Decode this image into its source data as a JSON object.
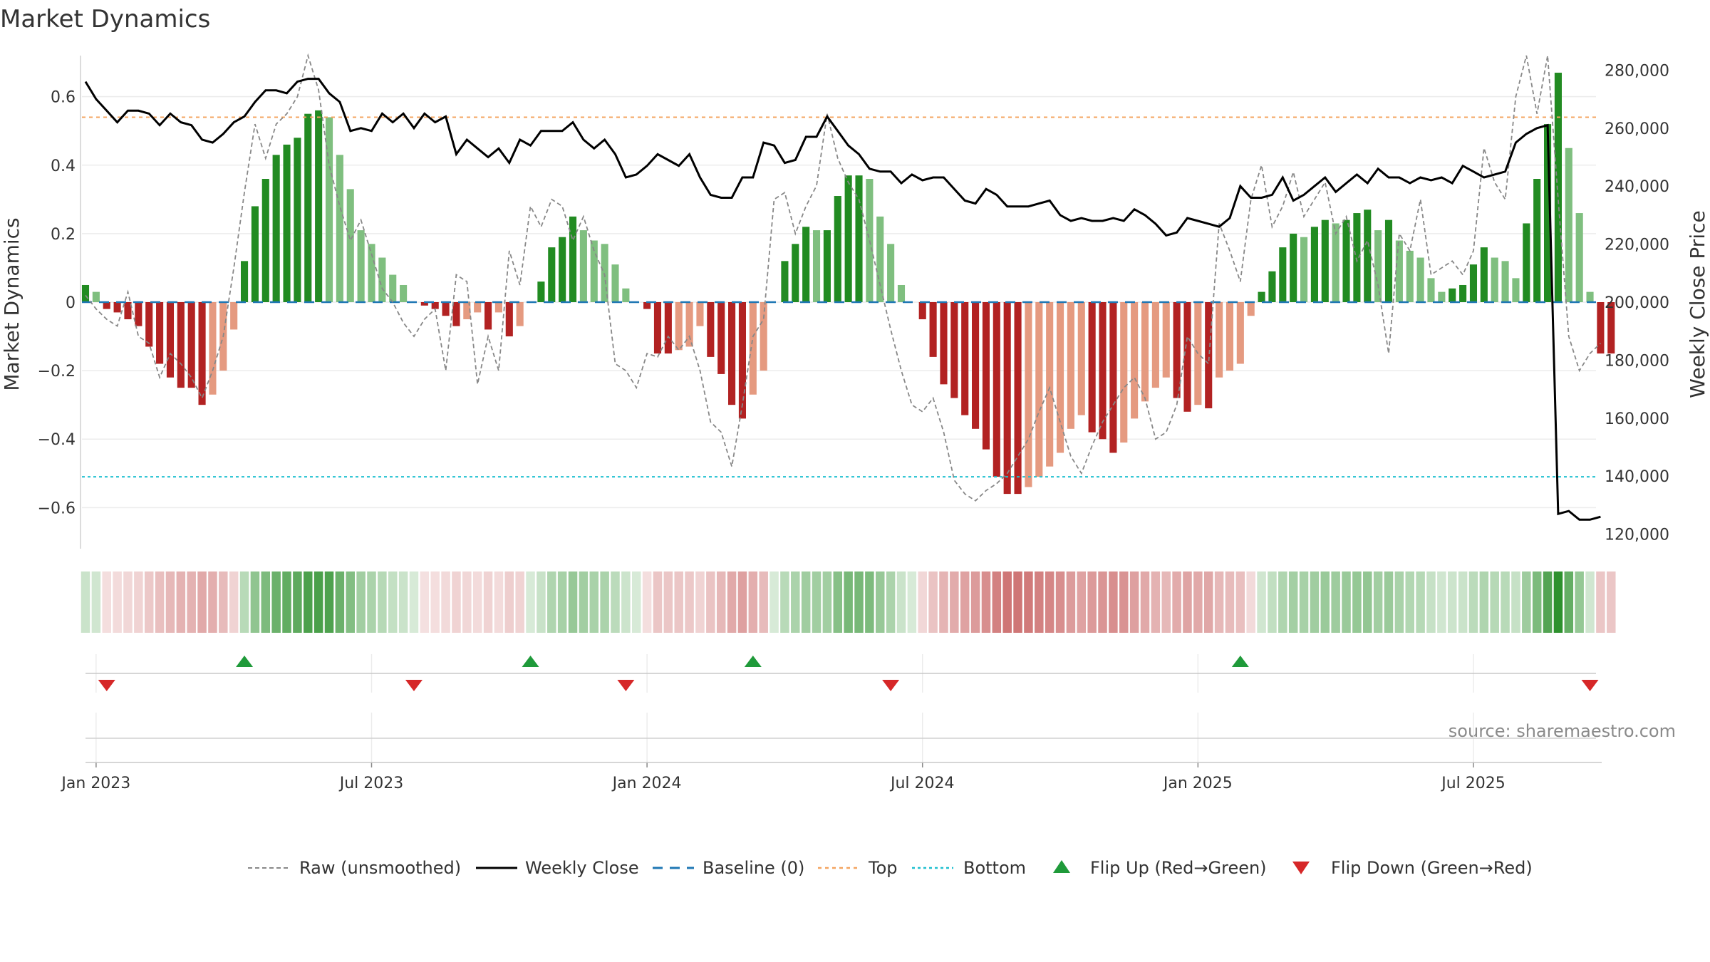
{
  "chart_data": {
    "type": "bar",
    "title": "Market Dynamics",
    "ylabel_left": "Market Dynamics",
    "ylabel_right": "Weekly Close Price",
    "source": "source: sharemaestro.com",
    "left_ylim": [
      -0.72,
      0.72
    ],
    "right_ylim": [
      115000,
      285000
    ],
    "left_ticks": [
      {
        "v": 0.6,
        "label": "0.6"
      },
      {
        "v": 0.4,
        "label": "0.4"
      },
      {
        "v": 0.2,
        "label": "0.2"
      },
      {
        "v": 0,
        "label": "0"
      },
      {
        "v": -0.2,
        "label": "−0.2"
      },
      {
        "v": -0.4,
        "label": "−0.4"
      },
      {
        "v": -0.6,
        "label": "−0.6"
      }
    ],
    "right_ticks": [
      {
        "v": 280000,
        "label": "280,000"
      },
      {
        "v": 260000,
        "label": "260,000"
      },
      {
        "v": 240000,
        "label": "240,000"
      },
      {
        "v": 220000,
        "label": "220,000"
      },
      {
        "v": 200000,
        "label": "200,000"
      },
      {
        "v": 180000,
        "label": "180,000"
      },
      {
        "v": 160000,
        "label": "160,000"
      },
      {
        "v": 140000,
        "label": "140,000"
      },
      {
        "v": 120000,
        "label": "120,000"
      }
    ],
    "x_ticks": [
      {
        "i": 1,
        "label": "Jan 2023"
      },
      {
        "i": 27,
        "label": "Jul 2023"
      },
      {
        "i": 53,
        "label": "Jan 2024"
      },
      {
        "i": 79,
        "label": "Jul 2024"
      },
      {
        "i": 105,
        "label": "Jan 2025"
      },
      {
        "i": 131,
        "label": "Jul 2025"
      }
    ],
    "top_level": 0.54,
    "bottom_level": -0.51,
    "weeks": 144,
    "x_index": [
      0,
      1,
      2,
      3,
      4,
      5,
      6,
      7,
      8,
      9,
      10,
      11,
      12,
      13,
      14,
      15,
      16,
      17,
      18,
      19,
      20,
      21,
      22,
      23,
      24,
      25,
      26,
      27,
      28,
      29,
      30,
      31,
      32,
      33,
      34,
      35,
      36,
      37,
      38,
      39,
      40,
      41,
      42,
      43,
      44,
      45,
      46,
      47,
      48,
      49,
      50,
      51,
      52,
      53,
      54,
      55,
      56,
      57,
      58,
      59,
      60,
      61,
      62,
      63,
      64,
      65,
      66,
      67,
      68,
      69,
      70,
      71,
      72,
      73,
      74,
      75,
      76,
      77,
      78,
      79,
      80,
      81,
      82,
      83,
      84,
      85,
      86,
      87,
      88,
      89,
      90,
      91,
      92,
      93,
      94,
      95,
      96,
      97,
      98,
      99,
      100,
      101,
      102,
      103,
      104,
      105,
      106,
      107,
      108,
      109,
      110,
      111,
      112,
      113,
      114,
      115,
      116,
      117,
      118,
      119,
      120,
      121,
      122,
      123,
      124,
      125,
      126,
      127,
      128,
      129,
      130,
      131,
      132,
      133,
      134,
      135,
      136,
      137,
      138,
      139,
      140,
      141,
      142,
      143
    ],
    "dynamics": [
      0.05,
      0.03,
      -0.02,
      -0.03,
      -0.05,
      -0.07,
      -0.13,
      -0.18,
      -0.22,
      -0.25,
      -0.25,
      -0.3,
      -0.27,
      -0.2,
      -0.08,
      0.12,
      0.28,
      0.36,
      0.43,
      0.46,
      0.48,
      0.55,
      0.56,
      0.54,
      0.43,
      0.33,
      0.21,
      0.17,
      0.13,
      0.08,
      0.05,
      0.0,
      -0.01,
      -0.02,
      -0.04,
      -0.07,
      -0.05,
      -0.03,
      -0.08,
      -0.03,
      -0.1,
      -0.07,
      0.0,
      0.06,
      0.16,
      0.19,
      0.25,
      0.21,
      0.18,
      0.17,
      0.11,
      0.04,
      0.0,
      -0.02,
      -0.15,
      -0.15,
      -0.14,
      -0.13,
      -0.07,
      -0.16,
      -0.21,
      -0.3,
      -0.34,
      -0.27,
      -0.2,
      0.0,
      0.12,
      0.17,
      0.22,
      0.21,
      0.21,
      0.31,
      0.37,
      0.37,
      0.36,
      0.25,
      0.17,
      0.05,
      0.0,
      -0.05,
      -0.16,
      -0.24,
      -0.28,
      -0.33,
      -0.37,
      -0.43,
      -0.51,
      -0.56,
      -0.56,
      -0.54,
      -0.51,
      -0.48,
      -0.44,
      -0.37,
      -0.33,
      -0.38,
      -0.4,
      -0.44,
      -0.41,
      -0.34,
      -0.29,
      -0.25,
      -0.22,
      -0.28,
      -0.32,
      -0.3,
      -0.31,
      -0.22,
      -0.2,
      -0.18,
      -0.04,
      0.03,
      0.09,
      0.16,
      0.2,
      0.19,
      0.22,
      0.24,
      0.23,
      0.24,
      0.26,
      0.27,
      0.21,
      0.24,
      0.18,
      0.15,
      0.13,
      0.07,
      0.03,
      0.04,
      0.05,
      0.11,
      0.16,
      0.13,
      0.12,
      0.07,
      0.23,
      0.36,
      0.52,
      0.67,
      0.45,
      0.26,
      0.03,
      -0.15,
      -0.15
    ],
    "raw": [
      0.02,
      -0.02,
      -0.05,
      -0.07,
      0.03,
      -0.1,
      -0.12,
      -0.22,
      -0.15,
      -0.18,
      -0.22,
      -0.28,
      -0.2,
      -0.1,
      0.1,
      0.32,
      0.52,
      0.42,
      0.52,
      0.55,
      0.6,
      0.72,
      0.62,
      0.4,
      0.28,
      0.18,
      0.24,
      0.14,
      0.04,
      0.0,
      -0.06,
      -0.1,
      -0.05,
      -0.02,
      -0.2,
      0.08,
      0.06,
      -0.24,
      -0.1,
      -0.2,
      0.15,
      0.05,
      0.28,
      0.22,
      0.3,
      0.28,
      0.18,
      0.25,
      0.15,
      0.08,
      -0.18,
      -0.2,
      -0.25,
      -0.15,
      -0.16,
      -0.1,
      -0.14,
      -0.1,
      -0.2,
      -0.35,
      -0.38,
      -0.48,
      -0.3,
      -0.1,
      -0.05,
      0.3,
      0.32,
      0.2,
      0.28,
      0.34,
      0.55,
      0.42,
      0.35,
      0.3,
      0.18,
      0.05,
      -0.08,
      -0.2,
      -0.3,
      -0.32,
      -0.28,
      -0.38,
      -0.52,
      -0.56,
      -0.58,
      -0.55,
      -0.53,
      -0.5,
      -0.45,
      -0.4,
      -0.32,
      -0.25,
      -0.35,
      -0.45,
      -0.5,
      -0.42,
      -0.35,
      -0.3,
      -0.25,
      -0.22,
      -0.28,
      -0.4,
      -0.38,
      -0.3,
      -0.1,
      -0.15,
      -0.18,
      0.23,
      0.15,
      0.06,
      0.3,
      0.4,
      0.22,
      0.28,
      0.38,
      0.25,
      0.3,
      0.35,
      0.2,
      0.25,
      0.12,
      0.18,
      0.05,
      -0.15,
      0.2,
      0.15,
      0.3,
      0.08,
      0.1,
      0.12,
      0.08,
      0.15,
      0.45,
      0.35,
      0.3,
      0.6,
      0.73,
      0.55,
      0.73,
      0.3,
      -0.1,
      -0.2,
      -0.15,
      -0.12
    ],
    "close": [
      276000,
      270000,
      266000,
      262000,
      266000,
      266000,
      265000,
      261000,
      265000,
      262000,
      261000,
      256000,
      255000,
      258000,
      262000,
      264000,
      269000,
      273000,
      273000,
      272000,
      276000,
      277000,
      277000,
      272000,
      269000,
      259000,
      260000,
      259000,
      265000,
      262000,
      265000,
      260000,
      265000,
      262000,
      264000,
      251000,
      256000,
      253000,
      250000,
      253000,
      248000,
      256000,
      254000,
      259000,
      259000,
      259000,
      262000,
      256000,
      253000,
      256000,
      251000,
      243000,
      244000,
      247000,
      251000,
      249000,
      247000,
      251000,
      243000,
      237000,
      236000,
      236000,
      243000,
      243000,
      255000,
      254000,
      248000,
      249000,
      257000,
      257000,
      264000,
      259000,
      254000,
      251000,
      246000,
      245000,
      245000,
      241000,
      244000,
      242000,
      243000,
      243000,
      239000,
      235000,
      234000,
      239000,
      237000,
      233000,
      233000,
      233000,
      234000,
      235000,
      230000,
      228000,
      229000,
      228000,
      228000,
      229000,
      228000,
      232000,
      230000,
      227000,
      223000,
      224000,
      229000,
      228000,
      227000,
      226000,
      229000,
      240000,
      236000,
      236000,
      237000,
      243000,
      235000,
      237000,
      240000,
      243000,
      238000,
      241000,
      244000,
      241000,
      246000,
      243000,
      243000,
      241000,
      243000,
      242000,
      243000,
      241000,
      247000,
      245000,
      243000,
      244000,
      245000,
      255000,
      258000,
      260000,
      261000,
      127000,
      128000,
      125000,
      125000,
      126000
    ],
    "strip_window": [
      0,
      143
    ],
    "flip_up": [
      15,
      42,
      63,
      109
    ],
    "flip_down": [
      2,
      31,
      51,
      76,
      142
    ],
    "legend": [
      {
        "label": "Raw (unsmoothed)",
        "kind": "dashed-gray"
      },
      {
        "label": "Weekly Close",
        "kind": "solid-black"
      },
      {
        "label": "Baseline (0)",
        "kind": "dashed-blue"
      },
      {
        "label": "Top",
        "kind": "dotted-orange"
      },
      {
        "label": "Bottom",
        "kind": "dotted-cyan"
      },
      {
        "label": "Flip Up (Red→Green)",
        "kind": "triangle-up"
      },
      {
        "label": "Flip Down (Green→Red)",
        "kind": "triangle-down"
      }
    ],
    "colors": {
      "strong_green": "#228b22",
      "light_green": "#7fbf7f",
      "strong_red": "#b22222",
      "light_red": "#e59a80",
      "raw": "#888888",
      "close": "#000000",
      "baseline": "#1f77b4",
      "top": "#f4a460",
      "bottom": "#20c0d0",
      "flip_up": "#1f9a3a",
      "flip_down": "#d62728"
    },
    "legend_placement": "bottom-center",
    "grid": true
  }
}
